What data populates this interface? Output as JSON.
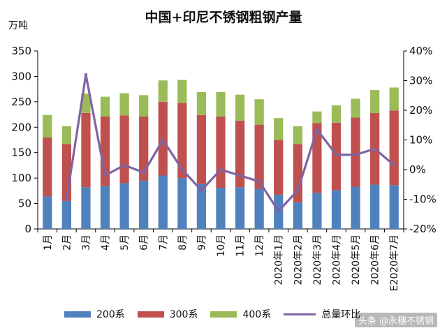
{
  "chart_data": {
    "type": "bar",
    "stacked": true,
    "title": "中国+印尼不锈钢粗钢产量",
    "ylabel": "万吨",
    "ylim": [
      0,
      350
    ],
    "yticks": [
      0,
      50,
      100,
      150,
      200,
      250,
      300,
      350
    ],
    "y2lim": [
      -20,
      40
    ],
    "y2ticks": [
      "-20%",
      "-10%",
      "0%",
      "10%",
      "20%",
      "30%",
      "40%"
    ],
    "y2tick_values": [
      -20,
      -10,
      0,
      10,
      20,
      30,
      40
    ],
    "categories": [
      "1月",
      "2月",
      "3月",
      "4月",
      "5月",
      "6月",
      "7月",
      "8月",
      "9月",
      "10月",
      "11月",
      "12月",
      "2020年1月",
      "2020年2月",
      "2020年3月",
      "2020年4月",
      "2020年5月",
      "2020年6月",
      "E2020年7月"
    ],
    "series": [
      {
        "name": "200系",
        "color": "#4f81bd",
        "values": [
          64,
          55,
          82,
          84,
          90,
          95,
          105,
          100,
          88,
          81,
          82,
          79,
          67,
          52,
          71,
          76,
          83,
          87,
          86
        ]
      },
      {
        "name": "300系",
        "color": "#c0504d",
        "values": [
          116,
          112,
          146,
          137,
          133,
          126,
          145,
          148,
          136,
          140,
          131,
          126,
          108,
          115,
          137,
          133,
          136,
          141,
          147
        ]
      },
      {
        "name": "400系",
        "color": "#9bbb59",
        "values": [
          44,
          35,
          38,
          39,
          44,
          42,
          42,
          45,
          45,
          48,
          51,
          50,
          43,
          35,
          23,
          34,
          37,
          45,
          45
        ]
      }
    ],
    "line_series": {
      "name": "总量环比",
      "color": "#8064a2",
      "axis": "right",
      "unit": "%",
      "values": [
        null,
        -10,
        32,
        -2,
        1.5,
        -1,
        10,
        0,
        -7,
        0,
        -2,
        -4,
        -14,
        -7,
        13.5,
        5,
        5,
        7,
        1.5
      ]
    }
  },
  "watermark": "头条 @永穗不锈钢"
}
